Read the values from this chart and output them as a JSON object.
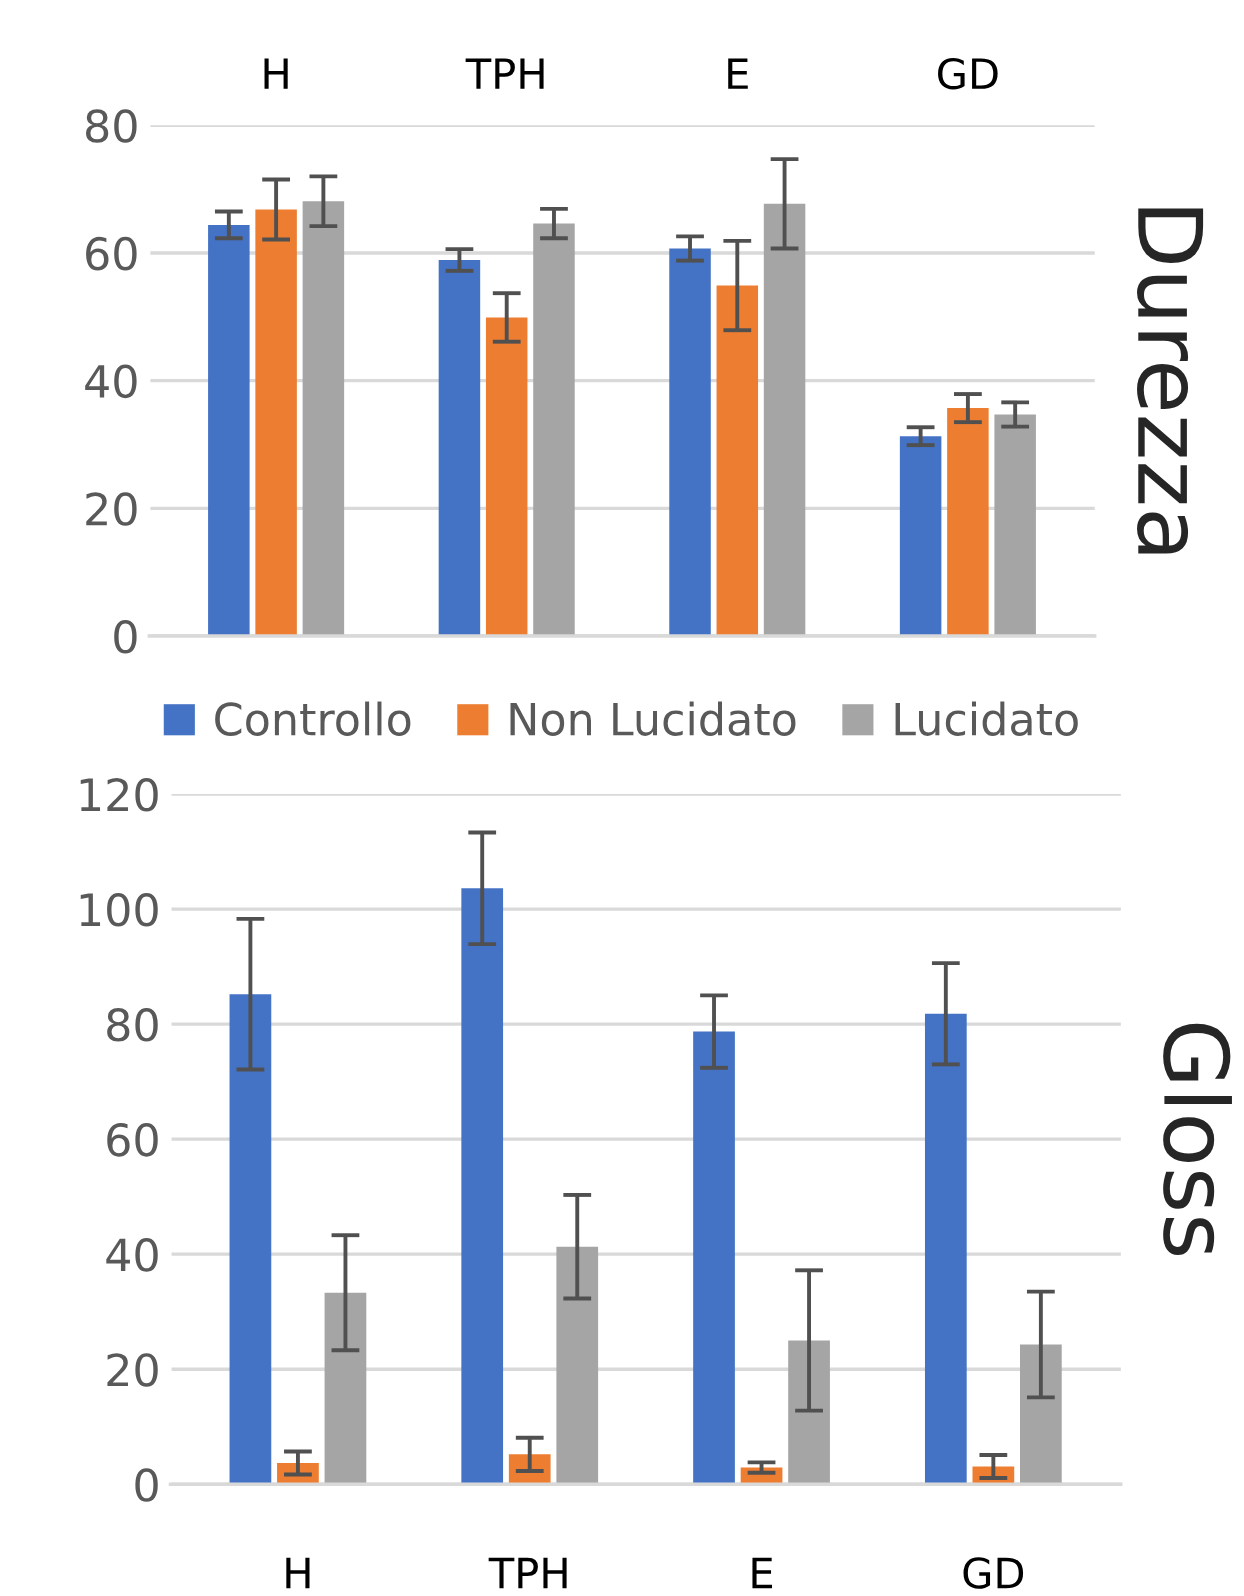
{
  "chart_data": [
    {
      "type": "bar",
      "ylabel": "Durezza",
      "categories": [
        "H",
        "TPH",
        "E",
        "GD"
      ],
      "ylim": [
        0,
        80
      ],
      "yticks": [
        0,
        20,
        40,
        60,
        80
      ],
      "grid": "y",
      "legend": "bottom",
      "series": [
        {
          "name": "Controllo",
          "color": "#4472c4",
          "values": [
            64.4,
            58.9,
            60.7,
            31.3
          ],
          "errors": [
            2.1,
            1.7,
            1.9,
            1.4
          ]
        },
        {
          "name": "Non Lucidato",
          "color": "#ed7d31",
          "values": [
            66.8,
            49.9,
            54.9,
            35.7
          ],
          "errors": [
            4.7,
            3.8,
            7,
            2.2
          ]
        },
        {
          "name": "Lucidato",
          "color": "#a5a5a5",
          "values": [
            68.1,
            64.6,
            67.7,
            34.7
          ],
          "errors": [
            3.9,
            2.3,
            7,
            1.9
          ]
        }
      ]
    },
    {
      "type": "bar",
      "ylabel": "Gloss",
      "categories": [
        "H",
        "TPH",
        "E",
        "GD"
      ],
      "ylim": [
        0,
        120
      ],
      "yticks": [
        0,
        20,
        40,
        60,
        80,
        100,
        120
      ],
      "grid": "y",
      "series": [
        {
          "color": "#4472c4",
          "values": [
            85.2,
            103.6,
            78.7,
            81.8
          ],
          "errors": [
            13.1,
            9.7,
            6.3,
            8.8
          ]
        },
        {
          "color": "#ed7d31",
          "values": [
            3.7,
            5.2,
            2.9,
            3.1
          ],
          "errors": [
            2,
            2.9,
            0.9,
            2
          ]
        },
        {
          "color": "#a5a5a5",
          "values": [
            33.3,
            41.3,
            25,
            24.3
          ],
          "errors": [
            10,
            9,
            12.2,
            9.2
          ]
        }
      ]
    }
  ]
}
